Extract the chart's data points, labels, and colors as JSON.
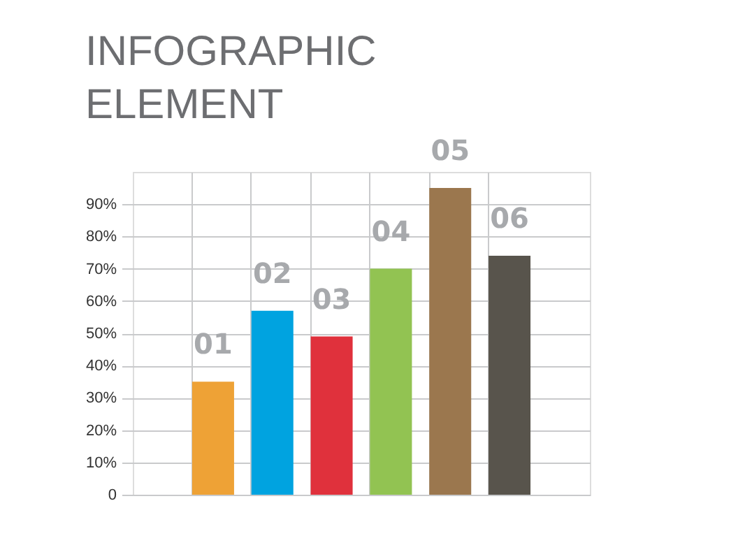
{
  "chart_data": {
    "type": "bar",
    "title": "INFOGRAPHIC ELEMENT",
    "categories": [
      "01",
      "02",
      "03",
      "04",
      "05",
      "06"
    ],
    "values": [
      35,
      57,
      49,
      70,
      95,
      74
    ],
    "colors": [
      "#eea236",
      "#00a3e0",
      "#e0313c",
      "#92c352",
      "#9b774e",
      "#58544c"
    ],
    "ylim": [
      0,
      100
    ],
    "yticks": [
      0,
      {
        "value": 10,
        "label": "10%"
      },
      {
        "value": 20,
        "label": "20%"
      },
      {
        "value": 30,
        "label": "30%"
      },
      {
        "value": 40,
        "label": "40%"
      },
      {
        "value": 50,
        "label": "50%"
      },
      {
        "value": 60,
        "label": "60%"
      },
      {
        "value": 70,
        "label": "70%"
      },
      {
        "value": 80,
        "label": "80%"
      },
      {
        "value": 90,
        "label": "90%"
      }
    ],
    "grid": true
  }
}
